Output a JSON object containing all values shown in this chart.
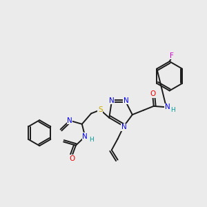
{
  "background_color": "#ebebeb",
  "bond_color": "#1a1a1a",
  "bond_width": 1.4,
  "colors": {
    "N": "#0000ee",
    "O": "#ee0000",
    "S": "#ccaa00",
    "F": "#dd00dd",
    "H_label": "#009999",
    "C": "#1a1a1a"
  },
  "fontsize": 7.5
}
